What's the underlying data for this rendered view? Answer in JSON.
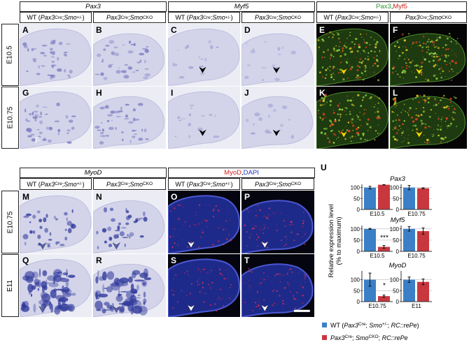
{
  "genotypes": {
    "wt": [
      "WT (",
      "Pax3",
      "Cre",
      "; ",
      "Smo",
      "+/-",
      ")"
    ],
    "cko": [
      "Pax3",
      "Cre",
      "; ",
      "Smo",
      "CKO"
    ]
  },
  "top": {
    "genes": [
      "Pax3",
      "Myf5"
    ],
    "merge": [
      "Pax3",
      ", ",
      "Myf5"
    ],
    "stages": [
      "E10.5",
      "E10.75"
    ],
    "letters": [
      [
        "A",
        "B",
        "C",
        "D",
        "E",
        "F"
      ],
      [
        "G",
        "H",
        "I",
        "J",
        "K",
        "L"
      ]
    ],
    "stray_label": "F"
  },
  "bottom": {
    "gene": "MyoD",
    "merge": [
      "MyoD",
      ", ",
      "DAPI"
    ],
    "stages": [
      "E10.75",
      "E11"
    ],
    "letters": [
      [
        "M",
        "N",
        "O",
        "P"
      ],
      [
        "Q",
        "R",
        "S",
        "T"
      ]
    ]
  },
  "panel_u": {
    "letter": "U",
    "y_label": [
      "Relative expression level",
      "(% to maximum)"
    ],
    "titles": [
      "Pax3",
      "Myf5",
      "MyoD"
    ],
    "legend": {
      "wt": [
        "WT (",
        "Pax3",
        "Cre",
        "; ",
        "Smo",
        "+/-",
        "; ",
        "RC::rePe",
        ")"
      ],
      "cko": [
        "Pax3",
        "Cre",
        "; ",
        "Smo",
        "CKO",
        "; ",
        "RC::rePe"
      ]
    }
  },
  "chart_data": [
    {
      "type": "bar",
      "x_label": "E10.5",
      "ylim": [
        0,
        115
      ],
      "yticks": [
        0,
        50,
        100
      ],
      "grid": true,
      "series": [
        {
          "color": "#3b80c6",
          "values": [
            100
          ],
          "errors": [
            6
          ]
        },
        {
          "color": "#c9373e",
          "values": [
            113
          ],
          "errors": [
            1
          ]
        }
      ]
    },
    {
      "type": "bar",
      "x_label": "E10.75",
      "ylim": [
        0,
        115
      ],
      "yticks": [
        0,
        50,
        100
      ],
      "grid": true,
      "series": [
        {
          "color": "#3b80c6",
          "values": [
            100
          ],
          "errors": [
            10
          ]
        },
        {
          "color": "#c9373e",
          "values": [
            97
          ],
          "errors": [
            2
          ]
        }
      ]
    },
    {
      "type": "bar",
      "x_label": "E10.5",
      "ylim": [
        0,
        115
      ],
      "yticks": [
        0,
        50,
        100
      ],
      "grid": true,
      "significance": "***",
      "series": [
        {
          "color": "#3b80c6",
          "values": [
            100
          ],
          "errors": [
            2
          ]
        },
        {
          "color": "#c9373e",
          "values": [
            20
          ],
          "errors": [
            6
          ]
        }
      ]
    },
    {
      "type": "bar",
      "x_label": "E10.75",
      "ylim": [
        0,
        115
      ],
      "yticks": [
        0,
        50,
        100
      ],
      "grid": true,
      "series": [
        {
          "color": "#3b80c6",
          "values": [
            100
          ],
          "errors": [
            10
          ]
        },
        {
          "color": "#c9373e",
          "values": [
            90
          ],
          "errors": [
            14
          ]
        }
      ]
    },
    {
      "type": "bar",
      "x_label": "E10.75",
      "ylim": [
        0,
        140
      ],
      "yticks": [
        0,
        50,
        100
      ],
      "grid": true,
      "significance": "*",
      "series": [
        {
          "color": "#3b80c6",
          "values": [
            100
          ],
          "errors": [
            30
          ]
        },
        {
          "color": "#c9373e",
          "values": [
            25
          ],
          "errors": [
            5
          ]
        }
      ]
    },
    {
      "type": "bar",
      "x_label": "E11",
      "ylim": [
        0,
        140
      ],
      "yticks": [
        0,
        50,
        100
      ],
      "grid": true,
      "series": [
        {
          "color": "#3b80c6",
          "values": [
            100
          ],
          "errors": [
            12
          ]
        },
        {
          "color": "#c9373e",
          "values": [
            90
          ],
          "errors": [
            13
          ]
        }
      ]
    }
  ]
}
